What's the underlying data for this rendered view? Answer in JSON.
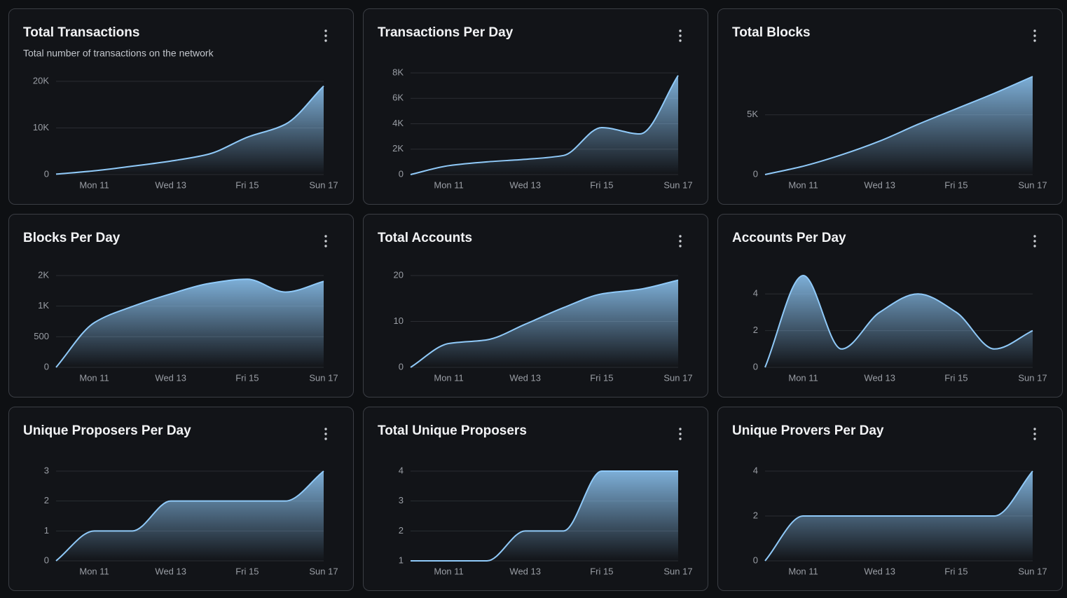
{
  "chart_data": [
    {
      "type": "area",
      "title": "Total Transactions",
      "subtitle": "Total number of transactions on the network",
      "categories": [
        null,
        "Mon 11",
        null,
        "Wed 13",
        null,
        "Fri 15",
        null,
        "Sun 17"
      ],
      "values": [
        100,
        800,
        1800,
        2900,
        4400,
        8000,
        10800,
        19000
      ],
      "color": "#90caf9",
      "ylim": [
        0,
        20000
      ],
      "yticks": [
        0,
        {
          "value": 10000,
          "label": "10K"
        },
        {
          "value": 20000,
          "label": "20K"
        }
      ],
      "grid": true
    },
    {
      "type": "area",
      "title": "Transactions Per Day",
      "categories": [
        null,
        "Mon 11",
        null,
        "Wed 13",
        null,
        "Fri 15",
        null,
        "Sun 17"
      ],
      "values": [
        0,
        700,
        1000,
        1200,
        1500,
        3700,
        3200,
        7800
      ],
      "color": "#90caf9",
      "ylim": [
        0,
        8000
      ],
      "yticks": [
        0,
        {
          "value": 2000,
          "label": "2K"
        },
        {
          "value": 4000,
          "label": "4K"
        },
        {
          "value": 6000,
          "label": "6K"
        },
        {
          "value": 8000,
          "label": "8K"
        }
      ],
      "grid": true
    },
    {
      "type": "area",
      "title": "Total Blocks",
      "categories": [
        null,
        "Mon 11",
        null,
        "Wed 13",
        null,
        "Fri 15",
        null,
        "Sun 17"
      ],
      "values": [
        0,
        700,
        1650,
        2800,
        4200,
        5500,
        6800,
        8200
      ],
      "color": "#90caf9",
      "ylim": [
        0,
        8500
      ],
      "yticks": [
        0,
        {
          "value": 5000,
          "label": "5K"
        }
      ],
      "grid": true
    },
    {
      "type": "area",
      "title": "Blocks Per Day",
      "categories": [
        null,
        "Mon 11",
        null,
        "Wed 13",
        null,
        "Fri 15",
        null,
        "Sun 17"
      ],
      "values": [
        0,
        730,
        995,
        1200,
        1370,
        1440,
        1230,
        1405
      ],
      "color": "#90caf9",
      "ylim": [
        0,
        1500
      ],
      "yticks": [
        0,
        500,
        {
          "value": 1000,
          "label": "1K"
        },
        {
          "value": 1500,
          "label": "2K"
        }
      ],
      "grid": true
    },
    {
      "type": "area",
      "title": "Total Accounts",
      "categories": [
        null,
        "Mon 11",
        null,
        "Wed 13",
        null,
        "Fri 15",
        null,
        "Sun 17"
      ],
      "values": [
        0,
        5.2,
        6,
        9.4,
        13,
        16,
        17,
        19
      ],
      "color": "#90caf9",
      "ylim": [
        0,
        20
      ],
      "yticks": [
        0,
        10,
        20
      ],
      "grid": true
    },
    {
      "type": "area",
      "title": "Accounts Per Day",
      "categories": [
        null,
        "Mon 11",
        null,
        "Wed 13",
        null,
        "Fri 15",
        null,
        "Sun 17"
      ],
      "values": [
        0,
        5,
        1,
        3,
        4,
        3,
        1,
        2
      ],
      "color": "#90caf9",
      "ylim": [
        0,
        5
      ],
      "yticks": [
        0,
        2,
        4
      ],
      "grid": true
    },
    {
      "type": "area",
      "title": "Unique Proposers Per Day",
      "categories": [
        null,
        "Mon 11",
        null,
        "Wed 13",
        null,
        "Fri 15",
        null,
        "Sun 17"
      ],
      "values": [
        0,
        1,
        1,
        2,
        2,
        2,
        2,
        3
      ],
      "color": "#90caf9",
      "ylim": [
        0,
        3
      ],
      "yticks": [
        0,
        1,
        2,
        3
      ],
      "grid": true
    },
    {
      "type": "area",
      "title": "Total Unique Proposers",
      "categories": [
        null,
        "Mon 11",
        null,
        "Wed 13",
        null,
        "Fri 15",
        null,
        "Sun 17"
      ],
      "values": [
        1,
        1,
        1,
        2,
        2,
        4,
        4,
        4
      ],
      "color": "#90caf9",
      "ylim": [
        1,
        4
      ],
      "yticks": [
        1,
        2,
        3,
        4
      ],
      "grid": true
    },
    {
      "type": "area",
      "title": "Unique Provers Per Day",
      "categories": [
        null,
        "Mon 11",
        null,
        "Wed 13",
        null,
        "Fri 15",
        null,
        "Sun 17"
      ],
      "values": [
        0,
        2,
        2,
        2,
        2,
        2,
        2,
        4
      ],
      "color": "#90caf9",
      "ylim": [
        0,
        4
      ],
      "yticks": [
        0,
        2,
        4
      ],
      "grid": true
    }
  ]
}
